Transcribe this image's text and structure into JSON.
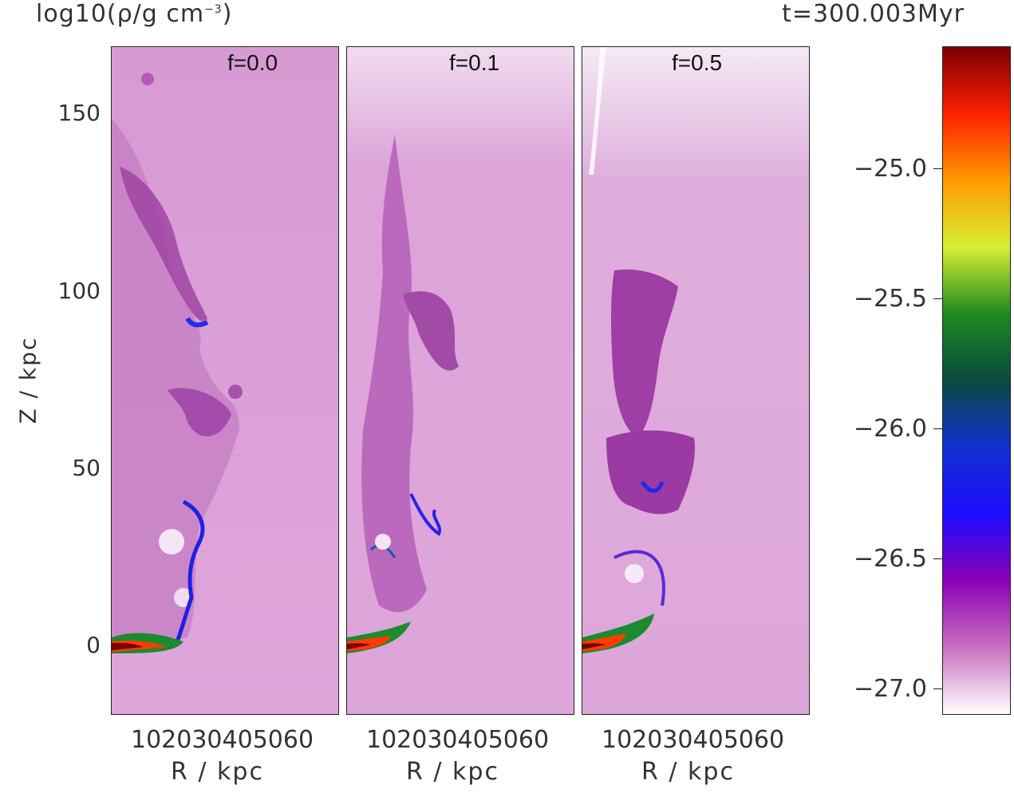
{
  "header": {
    "quantity_label": "log10(ρ/g cm",
    "quantity_exp": "−3",
    "quantity_close": ")",
    "time_label": "t=300.003Myr"
  },
  "yaxis": {
    "label": "Z / kpc",
    "ticks": [
      "150",
      "100",
      "50",
      "0"
    ]
  },
  "panels": [
    {
      "label": "f=0.0",
      "xticks": "102030405060",
      "xlabel": "R / kpc"
    },
    {
      "label": "f=0.1",
      "xticks": "102030405060",
      "xlabel": "R / kpc"
    },
    {
      "label": "f=0.5",
      "xticks": "102030405060",
      "xlabel": "R / kpc"
    }
  ],
  "colorbar": {
    "ticks": [
      "−25.0",
      "−25.5",
      "−26.0",
      "−26.5",
      "−27.0"
    ],
    "colors": [
      "#7a0000",
      "#ff2000",
      "#ff9a00",
      "#d7ef33",
      "#1f8a20",
      "#0a4a40",
      "#1030d0",
      "#1d0cff",
      "#8b00b5",
      "#c970c0",
      "#ffffff"
    ]
  }
}
